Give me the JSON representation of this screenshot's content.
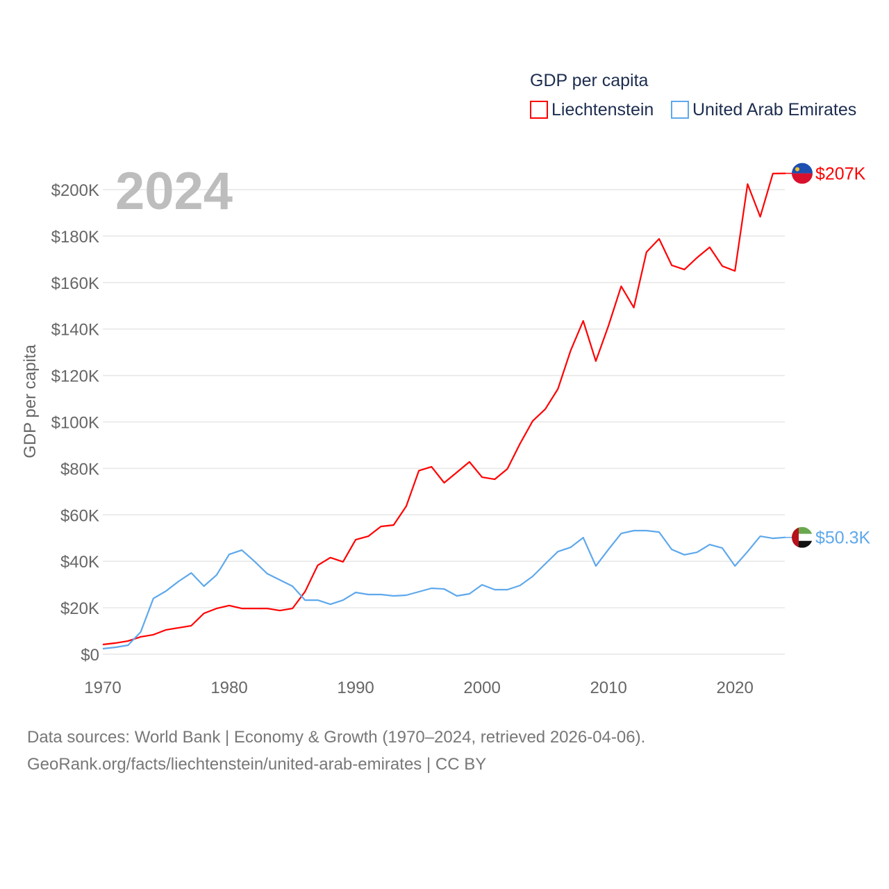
{
  "chart_data": {
    "type": "line",
    "title": "GDP per capita",
    "ylabel": "GDP per capita",
    "xlabel": "",
    "year_label": "2024",
    "ylim": [
      0,
      200000
    ],
    "xlim": [
      1970,
      2024
    ],
    "grid": true,
    "legend_placement": "top-right",
    "y_ticks": [
      0,
      20000,
      40000,
      60000,
      80000,
      100000,
      120000,
      140000,
      160000,
      180000,
      200000
    ],
    "y_tick_labels": [
      "$0",
      "$20K",
      "$40K",
      "$60K",
      "$80K",
      "$100K",
      "$120K",
      "$140K",
      "$160K",
      "$180K",
      "$200K"
    ],
    "x_ticks": [
      1970,
      1980,
      1990,
      2000,
      2010,
      2020
    ],
    "x_tick_labels": [
      "1970",
      "1980",
      "1990",
      "2000",
      "2010",
      "2020"
    ],
    "x": [
      1970,
      1971,
      1972,
      1973,
      1974,
      1975,
      1976,
      1977,
      1978,
      1979,
      1980,
      1981,
      1982,
      1983,
      1984,
      1985,
      1986,
      1987,
      1988,
      1989,
      1990,
      1991,
      1992,
      1993,
      1994,
      1995,
      1996,
      1997,
      1998,
      1999,
      2000,
      2001,
      2002,
      2003,
      2004,
      2005,
      2006,
      2007,
      2008,
      2009,
      2010,
      2011,
      2012,
      2013,
      2014,
      2015,
      2016,
      2017,
      2018,
      2019,
      2020,
      2021,
      2022,
      2023,
      2024
    ],
    "series": [
      {
        "name": "Liechtenstein",
        "color": "#ff0000",
        "end_label": "$207K",
        "flag": "liechtenstein-flag",
        "values": [
          4200,
          4800,
          5700,
          7500,
          8400,
          10500,
          11400,
          12300,
          17600,
          19700,
          21000,
          19700,
          19700,
          19700,
          18800,
          19700,
          27000,
          38300,
          41600,
          39800,
          49300,
          50800,
          55000,
          55600,
          63700,
          79000,
          80700,
          73800,
          78300,
          82800,
          76200,
          75300,
          79800,
          90600,
          100400,
          105500,
          114200,
          130600,
          143500,
          126200,
          141400,
          158400,
          149200,
          173100,
          178800,
          167400,
          165600,
          170700,
          175200,
          167100,
          165000,
          202400,
          188300,
          206900,
          207000
        ]
      },
      {
        "name": "United Arab Emirates",
        "color": "#5ea8ec",
        "end_label": "$50.3K",
        "flag": "uae-flag",
        "values": [
          2400,
          3000,
          3900,
          9600,
          24000,
          27200,
          31400,
          35000,
          29300,
          34100,
          43000,
          44800,
          40000,
          34700,
          32000,
          29300,
          23300,
          23300,
          21500,
          23300,
          26600,
          25700,
          25700,
          25100,
          25400,
          26900,
          28400,
          28100,
          25100,
          26000,
          29900,
          27800,
          27800,
          29600,
          33500,
          38900,
          44200,
          46000,
          50200,
          38000,
          45100,
          52000,
          53200,
          53200,
          52600,
          45100,
          42800,
          43900,
          47200,
          45700,
          38000,
          44200,
          50800,
          49900,
          50300
        ]
      }
    ]
  },
  "footer": {
    "line1": "Data sources: World Bank | Economy & Growth (1970–2024, retrieved 2026-04-06).",
    "line2": "GeoRank.org/facts/liechtenstein/united-arab-emirates | CC BY"
  }
}
